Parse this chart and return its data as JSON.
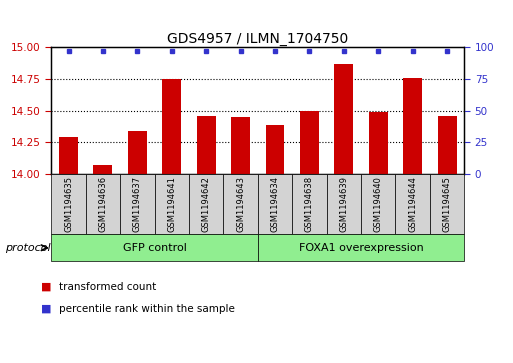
{
  "title": "GDS4957 / ILMN_1704750",
  "samples": [
    "GSM1194635",
    "GSM1194636",
    "GSM1194637",
    "GSM1194641",
    "GSM1194642",
    "GSM1194643",
    "GSM1194634",
    "GSM1194638",
    "GSM1194639",
    "GSM1194640",
    "GSM1194644",
    "GSM1194645"
  ],
  "transformed_counts": [
    14.29,
    14.07,
    14.34,
    14.75,
    14.46,
    14.45,
    14.39,
    14.5,
    14.87,
    14.49,
    14.76,
    14.46
  ],
  "bar_color": "#cc0000",
  "dot_color": "#3333cc",
  "ylim_left": [
    14.0,
    15.0
  ],
  "ylim_right": [
    0,
    100
  ],
  "yticks_left": [
    14.0,
    14.25,
    14.5,
    14.75,
    15.0
  ],
  "yticks_right": [
    0,
    25,
    50,
    75,
    100
  ],
  "bar_bottom": 14.0,
  "sample_box_color": "#d3d3d3",
  "gfp_indices": [
    0,
    1,
    2,
    3,
    4,
    5
  ],
  "foxa1_indices": [
    6,
    7,
    8,
    9,
    10,
    11
  ],
  "group_color": "#90ee90",
  "group_labels": [
    "GFP control",
    "FOXA1 overexpression"
  ],
  "protocol_label": "protocol",
  "legend_items": [
    {
      "label": "transformed count",
      "color": "#cc0000"
    },
    {
      "label": "percentile rank within the sample",
      "color": "#3333cc"
    }
  ],
  "title_fontsize": 10,
  "tick_fontsize": 7.5,
  "label_fontsize": 8
}
